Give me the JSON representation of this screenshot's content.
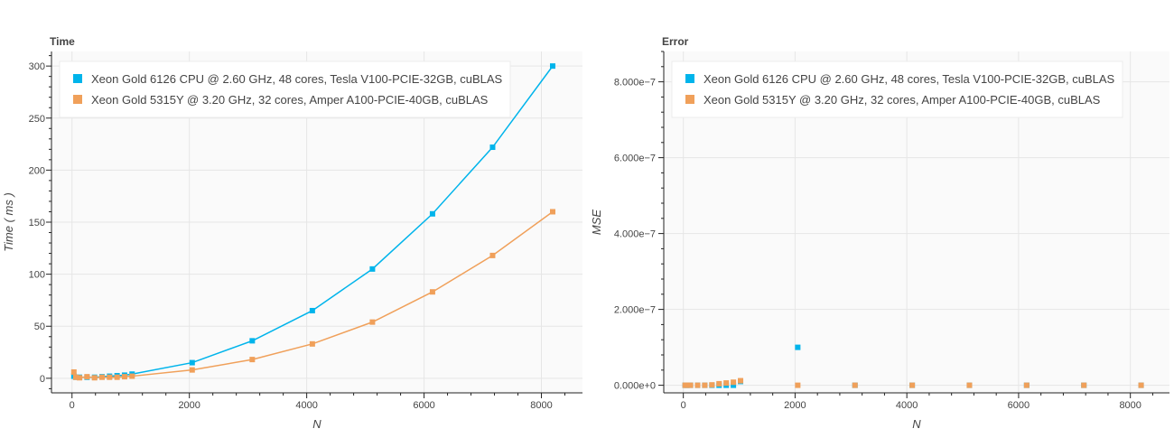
{
  "chart_data": [
    {
      "type": "line",
      "title": "Time",
      "xlabel": "N",
      "ylabel": "Time ( ms )",
      "xlim": [
        -350,
        8700
      ],
      "ylim": [
        -14,
        314
      ],
      "xticks": [
        0,
        2000,
        4000,
        6000,
        8000
      ],
      "yticks": [
        0,
        50,
        100,
        150,
        200,
        250,
        300
      ],
      "ytick_labels": [
        "0",
        "50",
        "100",
        "150",
        "200",
        "250",
        "300"
      ],
      "grid": true,
      "legend_position": "top-left",
      "series": [
        {
          "name": "Xeon Gold 6126 CPU @ 2.60 GHz, 48 cores, Tesla V100-PCIE-32GB, cuBLAS",
          "color": "#00b4eb",
          "x": [
            32,
            64,
            128,
            256,
            384,
            512,
            640,
            768,
            896,
            1024,
            2048,
            3072,
            4096,
            5120,
            6144,
            7168,
            8192
          ],
          "y": [
            2,
            1,
            1,
            1,
            1,
            1.5,
            2,
            2.5,
            3,
            4,
            15,
            36,
            65,
            105,
            158,
            222,
            300
          ]
        },
        {
          "name": "Xeon Gold 5315Y @ 3.20 GHz, 32 cores, Amper A100-PCIE-40GB, cuBLAS",
          "color": "#f0a05a",
          "x": [
            32,
            64,
            128,
            256,
            384,
            512,
            640,
            768,
            896,
            1024,
            2048,
            3072,
            4096,
            5120,
            6144,
            7168,
            8192
          ],
          "y": [
            6,
            1,
            0.5,
            1.5,
            0.5,
            1,
            1,
            1,
            1.5,
            2,
            8,
            18,
            33,
            54,
            83,
            118,
            160
          ]
        }
      ]
    },
    {
      "type": "scatter",
      "title": "Error",
      "xlabel": "N",
      "ylabel": "MSE",
      "xlim": [
        -350,
        8700
      ],
      "ylim": [
        -2e-08,
        8.8e-07
      ],
      "xticks": [
        0,
        2000,
        4000,
        6000,
        8000
      ],
      "yticks": [
        0,
        2e-07,
        4e-07,
        6e-07,
        8e-07
      ],
      "ytick_labels": [
        "0.000e+0",
        "2.000e−7",
        "4.000e−7",
        "6.000e−7",
        "8.000e−7"
      ],
      "grid": true,
      "legend_position": "top-left",
      "series": [
        {
          "name": "Xeon Gold 6126 CPU @ 2.60 GHz, 48 cores, Tesla V100-PCIE-32GB, cuBLAS",
          "color": "#00b4eb",
          "x": [
            32,
            64,
            128,
            256,
            384,
            512,
            640,
            768,
            896,
            1024,
            2048,
            3072,
            4096,
            5120,
            6144,
            7168,
            8192
          ],
          "y": [
            0,
            0,
            0,
            0,
            0,
            0,
            0,
            0,
            0,
            1e-08,
            1e-07,
            0,
            0,
            0,
            0,
            0,
            0
          ]
        },
        {
          "name": "Xeon Gold 5315Y @ 3.20 GHz, 32 cores, Amper A100-PCIE-40GB, cuBLAS",
          "color": "#f0a05a",
          "x": [
            32,
            64,
            128,
            256,
            384,
            512,
            640,
            768,
            896,
            1024,
            2048,
            3072,
            4096,
            5120,
            6144,
            7168,
            8192
          ],
          "y": [
            0,
            0,
            0,
            0,
            0,
            1e-09,
            4e-09,
            6e-09,
            8e-09,
            1.2e-08,
            0,
            0,
            0,
            0,
            0,
            0,
            0
          ]
        }
      ]
    }
  ]
}
